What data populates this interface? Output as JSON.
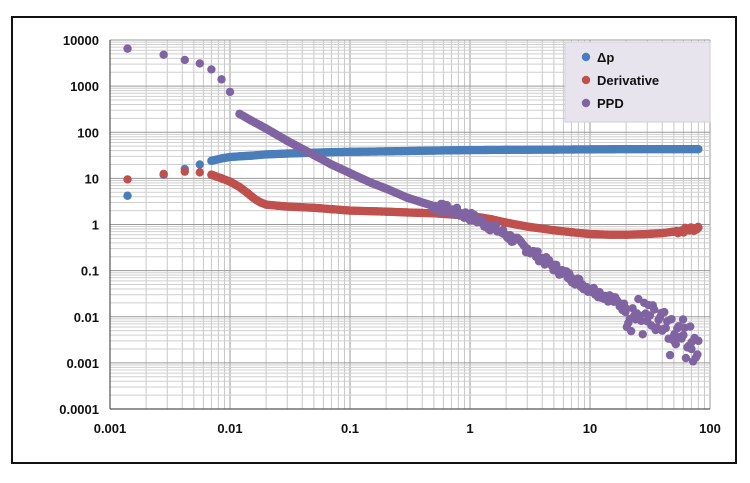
{
  "chart_data": {
    "type": "scatter",
    "xscale": "log",
    "yscale": "log",
    "xlim": [
      0.001,
      100
    ],
    "ylim": [
      0.0001,
      10000
    ],
    "grid": true,
    "legend_position": "top-right",
    "xticks": [
      "0.001",
      "0.01",
      "0.1",
      "1",
      "10",
      "100"
    ],
    "yticks": [
      "10000",
      "1000",
      "100",
      "10",
      "1",
      "0.1",
      "0.01",
      "0.001",
      "0.0001"
    ],
    "series": [
      {
        "name": "Δp",
        "color": "#4a7ebb",
        "x": [
          0.0014,
          0.0028,
          0.0042,
          0.0056,
          0.007,
          0.0085,
          0.01,
          0.012,
          0.015,
          0.02,
          0.03,
          0.05,
          0.07,
          0.1,
          0.2,
          0.5,
          1,
          2,
          5,
          10,
          20,
          50,
          80
        ],
        "y": [
          4.2,
          12,
          16,
          20,
          24,
          27,
          29,
          30,
          31,
          33,
          34.5,
          36,
          37,
          37.5,
          38.5,
          40,
          41,
          41.5,
          42,
          42.5,
          43,
          43,
          43
        ]
      },
      {
        "name": "Derivative",
        "color": "#c0504d",
        "x": [
          0.0014,
          0.0028,
          0.0042,
          0.0056,
          0.007,
          0.0085,
          0.01,
          0.012,
          0.014,
          0.016,
          0.018,
          0.02,
          0.025,
          0.03,
          0.05,
          0.07,
          0.1,
          0.2,
          0.3,
          0.5,
          0.7,
          1,
          1.5,
          2,
          3,
          5,
          7,
          10,
          15,
          20,
          30,
          40,
          50,
          60,
          70,
          80
        ],
        "y": [
          9.5,
          12.5,
          14,
          13.5,
          12,
          10,
          8.5,
          6.5,
          4.8,
          3.6,
          3.0,
          2.7,
          2.55,
          2.45,
          2.3,
          2.15,
          2.0,
          1.9,
          1.82,
          1.75,
          1.65,
          1.55,
          1.3,
          1.1,
          0.9,
          0.75,
          0.68,
          0.62,
          0.6,
          0.6,
          0.62,
          0.65,
          0.7,
          0.75,
          0.8,
          0.85
        ]
      },
      {
        "name": "PPD",
        "color": "#8064a2",
        "x": [
          0.0014,
          0.0028,
          0.0042,
          0.0056,
          0.007,
          0.0085,
          0.01,
          0.012,
          0.015,
          0.02,
          0.03,
          0.05,
          0.07,
          0.1,
          0.15,
          0.2,
          0.3,
          0.5,
          0.7,
          1,
          1.5,
          2,
          3,
          5,
          7,
          10,
          15,
          20,
          30,
          40,
          50,
          60,
          70,
          80
        ],
        "y": [
          6500,
          4800,
          3700,
          3100,
          2300,
          1400,
          750,
          250,
          180,
          120,
          65,
          32,
          20,
          13,
          8,
          6,
          3.8,
          2.5,
          2.0,
          1.5,
          0.9,
          0.6,
          0.3,
          0.12,
          0.07,
          0.04,
          0.025,
          0.015,
          0.008,
          0.005,
          0.003,
          0.004,
          0.002,
          0.003
        ]
      }
    ]
  }
}
